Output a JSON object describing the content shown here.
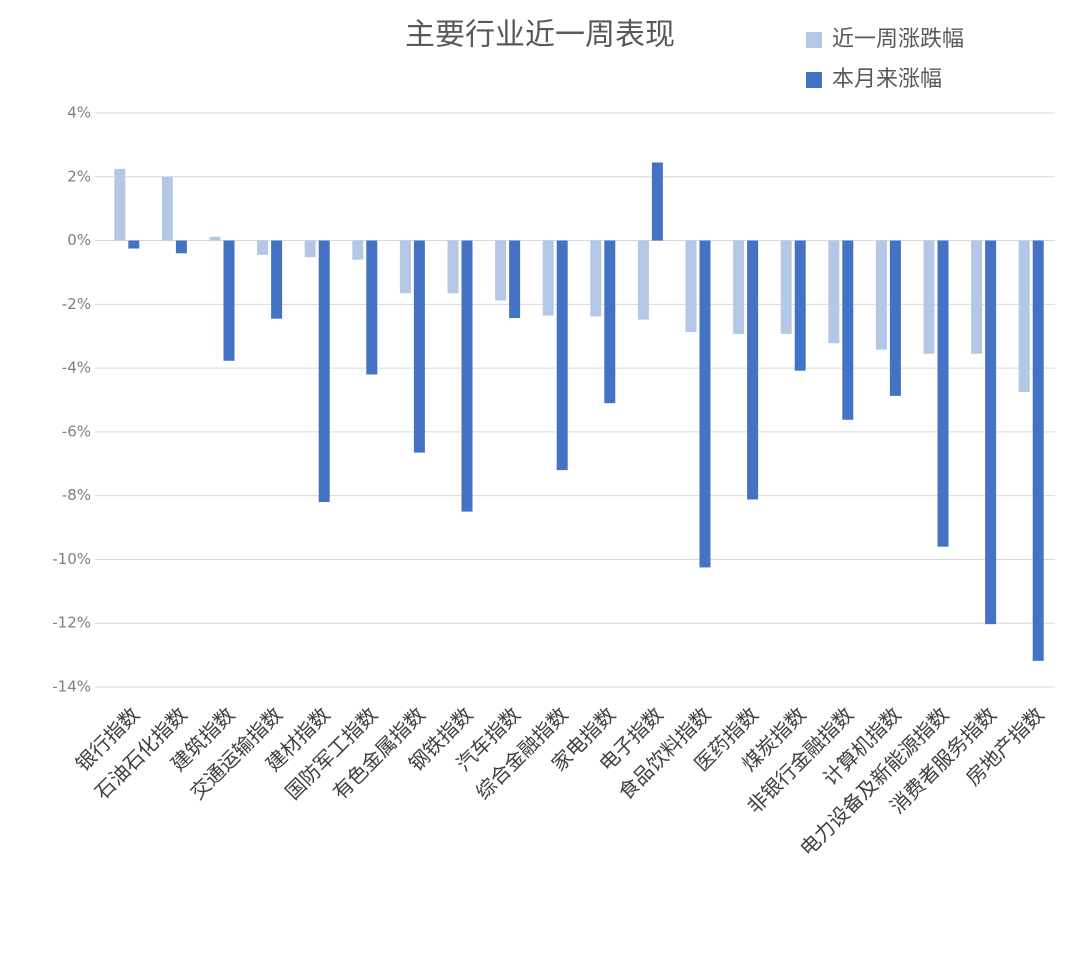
{
  "chart_data": {
    "type": "bar",
    "title": "主要行业近一周表现",
    "categories": [
      "银行指数",
      "石油石化指数",
      "建筑指数",
      "交通运输指数",
      "建材指数",
      "国防军工指数",
      "有色金属指数",
      "钢铁指数",
      "汽车指数",
      "综合金融指数",
      "家电指数",
      "电子指数",
      "食品饮料指数",
      "医药指数",
      "煤炭指数",
      "非银行金融指数",
      "计算机指数",
      "电力设备及新能源指数",
      "消费者服务指数",
      "房地产指数"
    ],
    "series": [
      {
        "name": "近一周涨跌幅",
        "color": "#b4c7e7",
        "values": [
          2.25,
          2.0,
          0.12,
          -0.45,
          -0.52,
          -0.6,
          -1.65,
          -1.65,
          -1.88,
          -2.35,
          -2.38,
          -2.48,
          -2.87,
          -2.93,
          -2.93,
          -3.22,
          -3.42,
          -3.55,
          -3.55,
          -4.75
        ]
      },
      {
        "name": "本月来涨幅",
        "color": "#4472c4",
        "values": [
          -0.25,
          -0.4,
          -3.77,
          -2.45,
          -8.2,
          -4.2,
          -6.65,
          -8.5,
          -2.43,
          -7.2,
          -5.1,
          2.45,
          -10.25,
          -8.12,
          -4.08,
          -5.62,
          -4.87,
          -9.6,
          -12.03,
          -13.18
        ]
      }
    ],
    "ylim": [
      -14,
      4
    ],
    "yticks": [
      {
        "value": 4,
        "label": "4%"
      },
      {
        "value": 2,
        "label": "2%"
      },
      {
        "value": 0,
        "label": "0%"
      },
      {
        "value": -2,
        "label": "-2%"
      },
      {
        "value": -4,
        "label": "-4%"
      },
      {
        "value": -6,
        "label": "-6%"
      },
      {
        "value": -8,
        "label": "-8%"
      },
      {
        "value": -10,
        "label": "-10%"
      },
      {
        "value": -12,
        "label": "-12%"
      },
      {
        "value": -14,
        "label": "-14%"
      }
    ],
    "grid": true
  }
}
